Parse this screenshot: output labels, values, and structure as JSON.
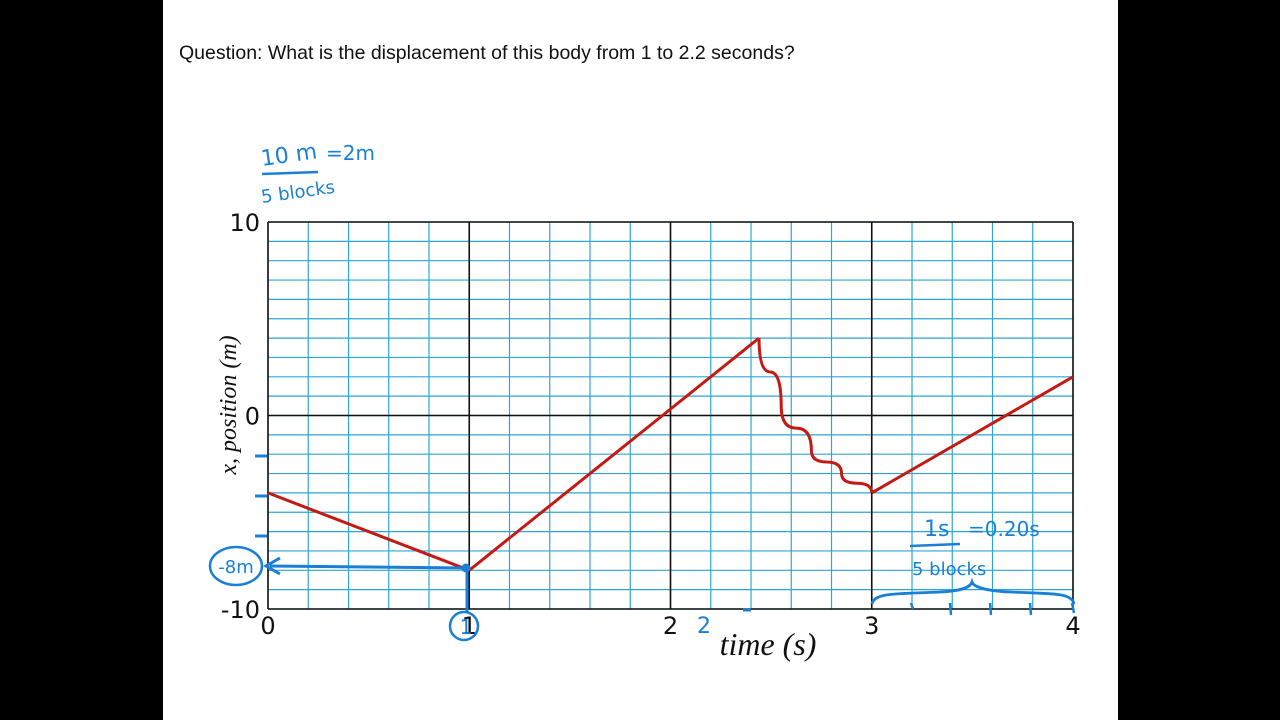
{
  "question": "Question: What is the displacement of this body from 1 to 2.2 seconds?",
  "colors": {
    "grid_minor": "#2ea6d0",
    "grid_major": "#111111",
    "curve": "#c41a14",
    "annotation": "#1a7fd6"
  },
  "chart_data": {
    "type": "line",
    "xlabel": "time (s)",
    "ylabel": "x, position (m)",
    "xlim": [
      0,
      4
    ],
    "ylim": [
      -10,
      10
    ],
    "xticks": [
      "0",
      "1",
      "2",
      "3",
      "4"
    ],
    "yticks": [
      "10",
      "0",
      "-10"
    ],
    "grid": true,
    "series": [
      {
        "segment": "linear",
        "x": [
          0,
          1
        ],
        "y": [
          -4,
          -8
        ]
      },
      {
        "segment": "linear",
        "x": [
          1,
          2.44
        ],
        "y": [
          -8,
          4
        ]
      },
      {
        "segment": "curve",
        "x": [
          2.44,
          2.55,
          2.7,
          2.85,
          3.0
        ],
        "y": [
          4,
          0.5,
          -1.8,
          -3.0,
          -4
        ]
      },
      {
        "segment": "linear",
        "x": [
          3,
          4
        ],
        "y": [
          -4,
          2
        ]
      }
    ]
  },
  "annotations": {
    "y_scale_top": "10 m",
    "y_scale_bottom": "5 blocks",
    "y_scale_result": "=2m",
    "x_scale_top": "1s",
    "x_scale_bottom": "5 blocks",
    "x_scale_result": "=0.20s",
    "marked_value": "-8m",
    "circled_tick": "1",
    "written_tick": "2"
  }
}
